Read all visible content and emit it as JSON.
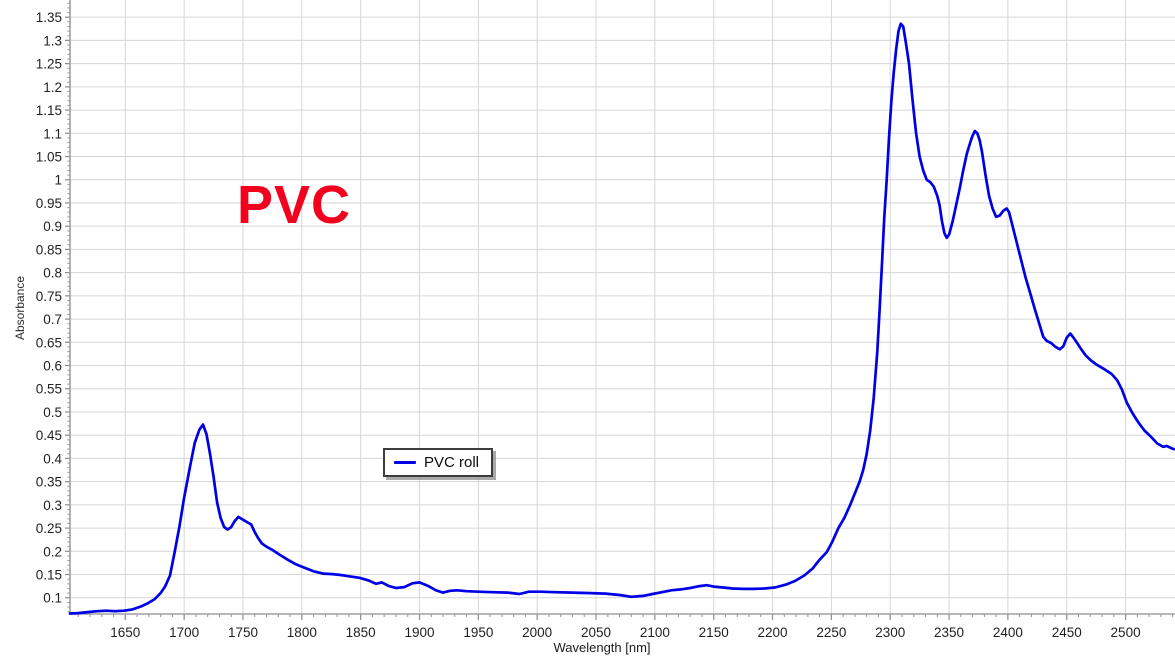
{
  "chart": {
    "background": "#ffffff",
    "grid_color": "#d6d6d6",
    "axis_color": "#a0a0a0",
    "tick_color": "#8f8f8f",
    "tick_label_color": "#1f1f1f",
    "legend_label": "PVC roll"
  },
  "chart_data": {
    "type": "line",
    "title": "",
    "xlabel": "Wavelength [nm]",
    "ylabel": "Absorbance",
    "xlim": [
      1603,
      2542
    ],
    "ylim": [
      0.065,
      1.387
    ],
    "grid": true,
    "legend_position": "inside-left-middle",
    "x_major_ticks": [
      1650,
      1700,
      1750,
      1800,
      1850,
      1900,
      1950,
      2000,
      2050,
      2100,
      2150,
      2200,
      2250,
      2300,
      2350,
      2400,
      2450,
      2500
    ],
    "y_major_ticks": [
      0.1,
      0.15,
      0.2,
      0.25,
      0.3,
      0.35,
      0.4,
      0.45,
      0.5,
      0.55,
      0.6,
      0.65,
      0.7,
      0.75,
      0.8,
      0.85,
      0.9,
      0.95,
      1,
      1.05,
      1.1,
      1.15,
      1.2,
      1.25,
      1.3,
      1.35
    ],
    "x_minor_step": 10,
    "y_minor_step": 0.01,
    "annotations": [
      {
        "text": "PVC",
        "color": "#f2001e",
        "x_nm": 1745,
        "y_abs": 0.95
      }
    ],
    "series": [
      {
        "name": "PVC roll",
        "color": "#0000e6",
        "points": [
          [
            1603,
            0.066
          ],
          [
            1610,
            0.067
          ],
          [
            1618,
            0.069
          ],
          [
            1626,
            0.071
          ],
          [
            1634,
            0.072
          ],
          [
            1641,
            0.071
          ],
          [
            1649,
            0.072
          ],
          [
            1656,
            0.075
          ],
          [
            1663,
            0.081
          ],
          [
            1669,
            0.088
          ],
          [
            1675,
            0.097
          ],
          [
            1680,
            0.11
          ],
          [
            1684,
            0.125
          ],
          [
            1688,
            0.148
          ],
          [
            1692,
            0.199
          ],
          [
            1696,
            0.253
          ],
          [
            1700,
            0.315
          ],
          [
            1705,
            0.382
          ],
          [
            1709,
            0.433
          ],
          [
            1713,
            0.462
          ],
          [
            1716,
            0.473
          ],
          [
            1719,
            0.452
          ],
          [
            1722,
            0.41
          ],
          [
            1725,
            0.36
          ],
          [
            1728,
            0.305
          ],
          [
            1731,
            0.272
          ],
          [
            1734,
            0.252
          ],
          [
            1737,
            0.247
          ],
          [
            1740,
            0.252
          ],
          [
            1743,
            0.265
          ],
          [
            1746,
            0.274
          ],
          [
            1750,
            0.268
          ],
          [
            1754,
            0.262
          ],
          [
            1757,
            0.258
          ],
          [
            1760,
            0.241
          ],
          [
            1763,
            0.228
          ],
          [
            1766,
            0.217
          ],
          [
            1770,
            0.21
          ],
          [
            1775,
            0.203
          ],
          [
            1781,
            0.193
          ],
          [
            1788,
            0.182
          ],
          [
            1795,
            0.172
          ],
          [
            1802,
            0.165
          ],
          [
            1810,
            0.157
          ],
          [
            1818,
            0.152
          ],
          [
            1826,
            0.151
          ],
          [
            1833,
            0.149
          ],
          [
            1841,
            0.146
          ],
          [
            1849,
            0.143
          ],
          [
            1857,
            0.137
          ],
          [
            1863,
            0.13
          ],
          [
            1868,
            0.133
          ],
          [
            1874,
            0.125
          ],
          [
            1880,
            0.121
          ],
          [
            1887,
            0.123
          ],
          [
            1894,
            0.131
          ],
          [
            1900,
            0.133
          ],
          [
            1907,
            0.126
          ],
          [
            1914,
            0.116
          ],
          [
            1920,
            0.111
          ],
          [
            1926,
            0.115
          ],
          [
            1932,
            0.116
          ],
          [
            1940,
            0.114
          ],
          [
            1950,
            0.113
          ],
          [
            1962,
            0.112
          ],
          [
            1975,
            0.111
          ],
          [
            1985,
            0.108
          ],
          [
            1993,
            0.113
          ],
          [
            2003,
            0.113
          ],
          [
            2015,
            0.112
          ],
          [
            2030,
            0.111
          ],
          [
            2045,
            0.11
          ],
          [
            2058,
            0.109
          ],
          [
            2070,
            0.106
          ],
          [
            2080,
            0.102
          ],
          [
            2090,
            0.104
          ],
          [
            2098,
            0.108
          ],
          [
            2106,
            0.112
          ],
          [
            2114,
            0.116
          ],
          [
            2122,
            0.118
          ],
          [
            2130,
            0.121
          ],
          [
            2138,
            0.125
          ],
          [
            2144,
            0.127
          ],
          [
            2150,
            0.124
          ],
          [
            2158,
            0.122
          ],
          [
            2166,
            0.12
          ],
          [
            2175,
            0.119
          ],
          [
            2184,
            0.119
          ],
          [
            2193,
            0.12
          ],
          [
            2202,
            0.122
          ],
          [
            2211,
            0.128
          ],
          [
            2219,
            0.136
          ],
          [
            2227,
            0.148
          ],
          [
            2234,
            0.163
          ],
          [
            2240,
            0.182
          ],
          [
            2246,
            0.198
          ],
          [
            2251,
            0.222
          ],
          [
            2256,
            0.25
          ],
          [
            2261,
            0.272
          ],
          [
            2266,
            0.3
          ],
          [
            2270,
            0.325
          ],
          [
            2274,
            0.35
          ],
          [
            2277,
            0.375
          ],
          [
            2280,
            0.41
          ],
          [
            2283,
            0.46
          ],
          [
            2286,
            0.53
          ],
          [
            2289,
            0.63
          ],
          [
            2291,
            0.72
          ],
          [
            2293,
            0.82
          ],
          [
            2295,
            0.92
          ],
          [
            2297,
            1.0
          ],
          [
            2299,
            1.09
          ],
          [
            2301,
            1.17
          ],
          [
            2303,
            1.23
          ],
          [
            2305,
            1.28
          ],
          [
            2307,
            1.32
          ],
          [
            2309,
            1.336
          ],
          [
            2311,
            1.33
          ],
          [
            2313,
            1.3
          ],
          [
            2316,
            1.25
          ],
          [
            2319,
            1.17
          ],
          [
            2322,
            1.1
          ],
          [
            2325,
            1.05
          ],
          [
            2328,
            1.02
          ],
          [
            2331,
            1.0
          ],
          [
            2334,
            0.995
          ],
          [
            2337,
            0.985
          ],
          [
            2340,
            0.965
          ],
          [
            2342,
            0.945
          ],
          [
            2344,
            0.91
          ],
          [
            2346,
            0.885
          ],
          [
            2348,
            0.875
          ],
          [
            2350,
            0.882
          ],
          [
            2353,
            0.91
          ],
          [
            2356,
            0.945
          ],
          [
            2359,
            0.98
          ],
          [
            2362,
            1.02
          ],
          [
            2365,
            1.055
          ],
          [
            2368,
            1.08
          ],
          [
            2370,
            1.095
          ],
          [
            2372,
            1.105
          ],
          [
            2374,
            1.1
          ],
          [
            2376,
            1.085
          ],
          [
            2378,
            1.06
          ],
          [
            2381,
            1.01
          ],
          [
            2384,
            0.965
          ],
          [
            2387,
            0.938
          ],
          [
            2390,
            0.92
          ],
          [
            2393,
            0.923
          ],
          [
            2396,
            0.933
          ],
          [
            2399,
            0.938
          ],
          [
            2401,
            0.93
          ],
          [
            2404,
            0.9
          ],
          [
            2407,
            0.87
          ],
          [
            2411,
            0.83
          ],
          [
            2415,
            0.79
          ],
          [
            2419,
            0.755
          ],
          [
            2423,
            0.72
          ],
          [
            2427,
            0.687
          ],
          [
            2430,
            0.662
          ],
          [
            2433,
            0.653
          ],
          [
            2437,
            0.648
          ],
          [
            2440,
            0.641
          ],
          [
            2444,
            0.635
          ],
          [
            2447,
            0.641
          ],
          [
            2450,
            0.66
          ],
          [
            2453,
            0.669
          ],
          [
            2456,
            0.659
          ],
          [
            2459,
            0.648
          ],
          [
            2462,
            0.636
          ],
          [
            2466,
            0.622
          ],
          [
            2471,
            0.61
          ],
          [
            2476,
            0.601
          ],
          [
            2482,
            0.592
          ],
          [
            2488,
            0.582
          ],
          [
            2493,
            0.568
          ],
          [
            2497,
            0.548
          ],
          [
            2501,
            0.52
          ],
          [
            2506,
            0.497
          ],
          [
            2511,
            0.477
          ],
          [
            2516,
            0.46
          ],
          [
            2521,
            0.448
          ],
          [
            2527,
            0.432
          ],
          [
            2532,
            0.425
          ],
          [
            2535,
            0.427
          ],
          [
            2538,
            0.423
          ],
          [
            2541,
            0.42
          ]
        ]
      }
    ]
  }
}
